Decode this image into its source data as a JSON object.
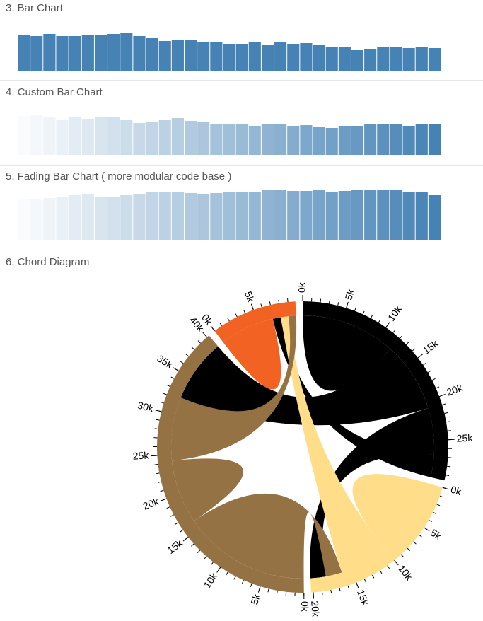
{
  "chart_data": [
    {
      "type": "bar",
      "title": "3. Bar Chart",
      "color": "#4682b4",
      "fade": false,
      "values": [
        50,
        49,
        52,
        49,
        49,
        50,
        50,
        52,
        53,
        49,
        46,
        42,
        43,
        43,
        41,
        40,
        38,
        38,
        41,
        37,
        40,
        38,
        39,
        36,
        34,
        33,
        30,
        31,
        34,
        33,
        32,
        34,
        32
      ]
    },
    {
      "type": "bar",
      "title": "4. Custom Bar Chart",
      "color": "#4682b4",
      "fade": true,
      "values": [
        55,
        56,
        53,
        50,
        53,
        51,
        53,
        53,
        49,
        45,
        47,
        49,
        52,
        48,
        47,
        44,
        44,
        44,
        41,
        43,
        43,
        41,
        42,
        39,
        38,
        41,
        41,
        44,
        44,
        43,
        41,
        44,
        44
      ]
    },
    {
      "type": "bar",
      "title": "5. Fading Bar Chart ( more modular code base )",
      "color": "#4682b4",
      "fade": true,
      "values": [
        58,
        59,
        60,
        62,
        64,
        66,
        62,
        62,
        65,
        66,
        69,
        69,
        69,
        67,
        66,
        67,
        68,
        68,
        69,
        71,
        71,
        70,
        70,
        71,
        69,
        70,
        71,
        71,
        71,
        71,
        69,
        69,
        65
      ]
    },
    {
      "type": "chord",
      "title": "6. Chord Diagram",
      "matrix": [
        [
          11975,
          5871,
          8916,
          2868
        ],
        [
          1951,
          10048,
          2060,
          6171
        ],
        [
          8010,
          16145,
          8090,
          8045
        ],
        [
          1013,
          990,
          940,
          6907
        ]
      ],
      "colors": [
        "#000000",
        "#FFDD89",
        "#957244",
        "#F26223"
      ],
      "minor_tick_step": 1000,
      "group_ticks": [
        [
          {
            "value": 0,
            "label": "0k"
          },
          {
            "value": 5000,
            "label": "5k"
          },
          {
            "value": 10000,
            "label": "10k"
          },
          {
            "value": 15000,
            "label": "15k"
          },
          {
            "value": 20000,
            "label": "20k"
          },
          {
            "value": 25000,
            "label": "25k"
          }
        ],
        [
          {
            "value": 0,
            "label": "0k"
          },
          {
            "value": 5000,
            "label": "5k"
          },
          {
            "value": 10000,
            "label": "10k"
          },
          {
            "value": 15000,
            "label": "15k"
          },
          {
            "value": 20000,
            "label": "20k"
          }
        ],
        [
          {
            "value": 0,
            "label": "0k"
          },
          {
            "value": 5000,
            "label": "5k"
          },
          {
            "value": 10000,
            "label": "10k"
          },
          {
            "value": 15000,
            "label": "15k"
          },
          {
            "value": 20000,
            "label": "20k"
          },
          {
            "value": 25000,
            "label": "25k"
          },
          {
            "value": 30000,
            "label": "30k"
          },
          {
            "value": 35000,
            "label": "35k"
          },
          {
            "value": 40000,
            "label": "40k"
          }
        ],
        [
          {
            "value": 0,
            "label": "0k"
          },
          {
            "value": 5000,
            "label": "5k"
          }
        ]
      ]
    }
  ]
}
